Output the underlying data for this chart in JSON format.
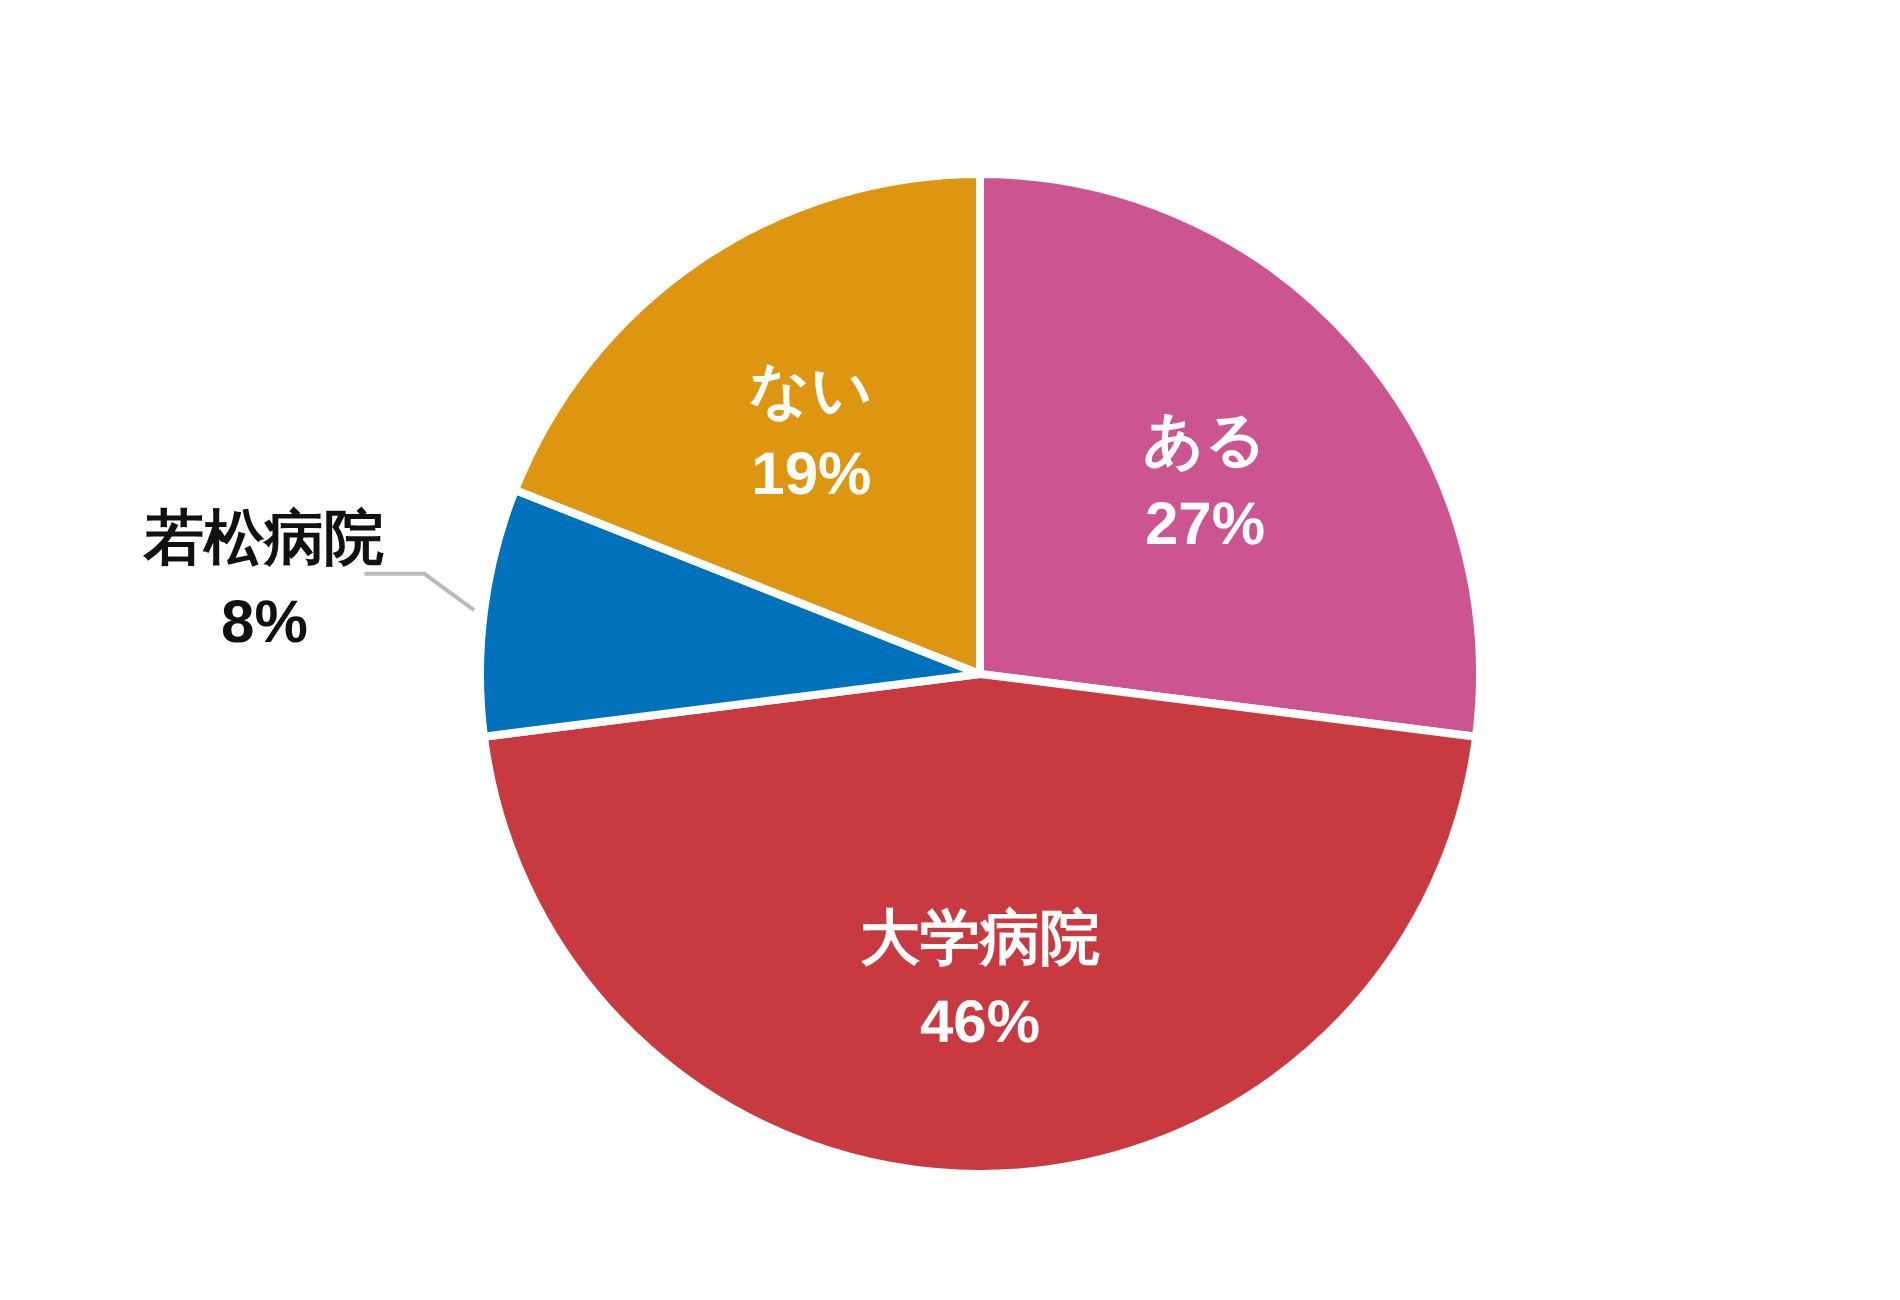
{
  "chart_data": {
    "type": "pie",
    "categories": [
      "ある",
      "大学病院",
      "若松病院",
      "ない"
    ],
    "values": [
      27,
      46,
      8,
      19
    ],
    "colors": [
      "#cc5490",
      "#c93a40",
      "#0072bc",
      "#de9610"
    ],
    "value_labels": [
      "27%",
      "46%",
      "8%",
      "19%"
    ]
  }
}
